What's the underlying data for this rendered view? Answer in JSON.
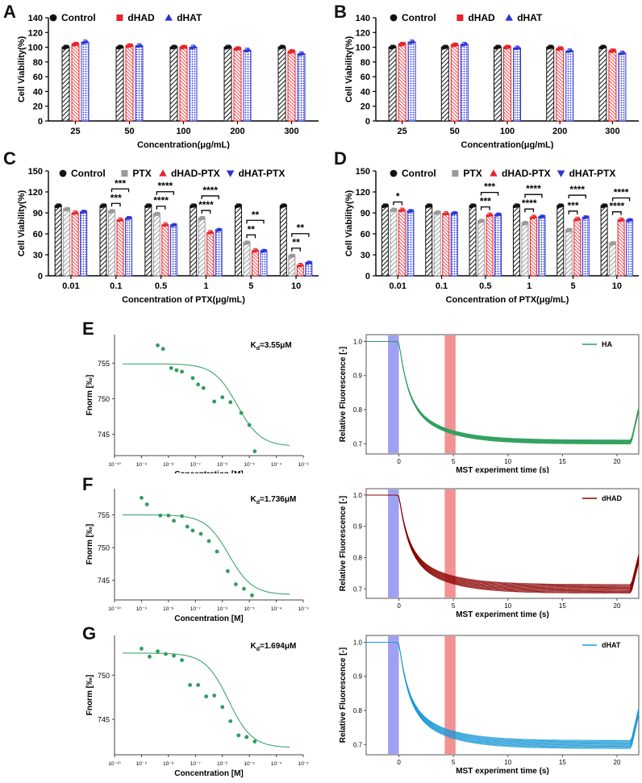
{
  "panels": {
    "A": "A",
    "B": "B",
    "C": "C",
    "D": "D",
    "E": "E",
    "F": "F",
    "G": "G"
  },
  "colors": {
    "control": "#111111",
    "dHAD": "#e8232a",
    "dHAT": "#2833d8",
    "PTX": "#9a9a9a",
    "green": "#2e9e5b",
    "darkred": "#8b0000",
    "cyan": "#1e9ad6"
  },
  "chart_data": [
    {
      "id": "A",
      "type": "bar",
      "ylabel": "Cell Viability(%)",
      "xlabel": "Concentration(μg/mL)",
      "ylim": [
        0,
        140
      ],
      "yticks": [
        0,
        20,
        40,
        60,
        80,
        100,
        120,
        140
      ],
      "categories": [
        "25",
        "50",
        "100",
        "200",
        "300"
      ],
      "series": [
        {
          "name": "Control",
          "values": [
            100,
            100,
            100,
            100,
            100
          ]
        },
        {
          "name": "dHAD",
          "values": [
            104,
            102,
            100,
            98,
            94
          ]
        },
        {
          "name": "dHAT",
          "values": [
            107,
            102,
            100,
            96,
            91
          ]
        }
      ],
      "significance": []
    },
    {
      "id": "B",
      "type": "bar",
      "ylabel": "Cell Viability(%)",
      "xlabel": "Concentration(μg/mL)",
      "ylim": [
        0,
        140
      ],
      "yticks": [
        0,
        20,
        40,
        60,
        80,
        100,
        120,
        140
      ],
      "categories": [
        "25",
        "50",
        "100",
        "200",
        "300"
      ],
      "series": [
        {
          "name": "Control",
          "values": [
            100,
            100,
            100,
            100,
            100
          ]
        },
        {
          "name": "dHAD",
          "values": [
            104,
            103,
            100,
            98,
            95
          ]
        },
        {
          "name": "dHAT",
          "values": [
            107,
            104,
            99,
            95,
            92
          ]
        }
      ],
      "significance": []
    },
    {
      "id": "C",
      "type": "bar",
      "ylabel": "Cell Viability(%)",
      "xlabel": "Concentration of PTX(μg/mL)",
      "ylim": [
        0,
        150
      ],
      "yticks": [
        0,
        30,
        60,
        90,
        120,
        150
      ],
      "categories": [
        "0.01",
        "0.1",
        "0.5",
        "1",
        "5",
        "10"
      ],
      "series": [
        {
          "name": "Control",
          "values": [
            100,
            100,
            100,
            100,
            100,
            100
          ]
        },
        {
          "name": "PTX",
          "values": [
            95,
            92,
            88,
            82,
            47,
            28
          ]
        },
        {
          "name": "dHAD-PTX",
          "values": [
            90,
            80,
            73,
            62,
            36,
            15
          ]
        },
        {
          "name": "dHAT-PTX",
          "values": [
            91,
            82,
            72,
            65,
            35,
            18
          ]
        }
      ],
      "significance": [
        {
          "cat": 1,
          "from": 1,
          "to": 2,
          "level": 0,
          "label": "***"
        },
        {
          "cat": 1,
          "from": 1,
          "to": 3,
          "level": 1,
          "label": "***"
        },
        {
          "cat": 2,
          "from": 1,
          "to": 2,
          "level": 0,
          "label": "****"
        },
        {
          "cat": 2,
          "from": 1,
          "to": 3,
          "level": 1,
          "label": "****"
        },
        {
          "cat": 3,
          "from": 1,
          "to": 2,
          "level": 0,
          "label": "****"
        },
        {
          "cat": 3,
          "from": 1,
          "to": 3,
          "level": 1,
          "label": "****"
        },
        {
          "cat": 4,
          "from": 1,
          "to": 2,
          "level": 0,
          "label": "**"
        },
        {
          "cat": 4,
          "from": 1,
          "to": 3,
          "level": 1,
          "label": "**"
        },
        {
          "cat": 5,
          "from": 1,
          "to": 2,
          "level": 0,
          "label": "**"
        },
        {
          "cat": 5,
          "from": 1,
          "to": 3,
          "level": 1,
          "label": "**"
        }
      ]
    },
    {
      "id": "D",
      "type": "bar",
      "ylabel": "Cell Viability(%)",
      "xlabel": "Concentration of PTX(μg/mL)",
      "ylim": [
        0,
        150
      ],
      "yticks": [
        0,
        30,
        60,
        90,
        120,
        150
      ],
      "categories": [
        "0.01",
        "0.1",
        "0.5",
        "1",
        "5",
        "10"
      ],
      "series": [
        {
          "name": "Control",
          "values": [
            100,
            100,
            100,
            100,
            100,
            100
          ]
        },
        {
          "name": "PTX",
          "values": [
            94,
            90,
            78,
            75,
            65,
            46
          ]
        },
        {
          "name": "dHAD-PTX",
          "values": [
            94,
            89,
            87,
            84,
            81,
            80
          ]
        },
        {
          "name": "dHAT-PTX",
          "values": [
            92,
            89,
            87,
            84,
            83,
            79
          ]
        }
      ],
      "significance": [
        {
          "cat": 0,
          "from": 1,
          "to": 2,
          "level": 0,
          "label": "*"
        },
        {
          "cat": 2,
          "from": 1,
          "to": 2,
          "level": 0,
          "label": "***"
        },
        {
          "cat": 2,
          "from": 1,
          "to": 3,
          "level": 1,
          "label": "***"
        },
        {
          "cat": 3,
          "from": 1,
          "to": 2,
          "level": 0,
          "label": "****"
        },
        {
          "cat": 3,
          "from": 1,
          "to": 3,
          "level": 1,
          "label": "****"
        },
        {
          "cat": 4,
          "from": 1,
          "to": 2,
          "level": 0,
          "label": "***"
        },
        {
          "cat": 4,
          "from": 1,
          "to": 3,
          "level": 1,
          "label": "****"
        },
        {
          "cat": 5,
          "from": 1,
          "to": 2,
          "level": 0,
          "label": "****"
        },
        {
          "cat": 5,
          "from": 1,
          "to": 3,
          "level": 1,
          "label": "****"
        }
      ]
    },
    {
      "id": "E-fit",
      "type": "scatter",
      "ylabel": "Fnorm [‰]",
      "xlabel": "Concentration [M]",
      "annotation_main": "K",
      "annotation_sub": "d",
      "annotation_rest": "=3.55μM",
      "xlog": [
        -10,
        -3
      ],
      "ylim": [
        742,
        759
      ],
      "yticks": [
        745,
        750,
        755
      ],
      "xtick_labels": [
        "10⁻¹⁰",
        "10⁻⁹",
        "10⁻⁸",
        "10⁻⁷",
        "10⁻⁶",
        "10⁻⁵",
        "10⁻⁴",
        "10⁻³"
      ],
      "points_log10x": [
        -8.4,
        -8.2,
        -7.9,
        -7.7,
        -7.5,
        -7.1,
        -6.9,
        -6.7,
        -6.3,
        -6.0,
        -5.7,
        -5.3,
        -5.0,
        -4.8
      ],
      "points_y": [
        757.5,
        757.0,
        754.3,
        754.0,
        753.8,
        752.9,
        752.0,
        751.5,
        749.6,
        750.2,
        749.5,
        748.0,
        746.3,
        742.6
      ],
      "fit": {
        "top": 754.9,
        "bottom": 743.3,
        "log_kd": -5.45,
        "slope": 1
      }
    },
    {
      "id": "E-trace",
      "type": "line",
      "ylabel": "Relative Fluorescence [-]",
      "xlabel": "MST experiment time (s)",
      "legend": "HA",
      "xlim": [
        -3,
        22
      ],
      "ylim": [
        0.67,
        1.02
      ],
      "xticks": [
        0,
        5,
        10,
        15,
        20
      ],
      "yticks": [
        0.7,
        0.8,
        0.9,
        1.0
      ],
      "ytick_labels": [
        "0.7",
        "0.8",
        "0.9",
        "1.0"
      ],
      "plateau": 0.705,
      "spread": 0.006,
      "n_traces": 14
    },
    {
      "id": "F-fit",
      "type": "scatter",
      "ylabel": "Fnorm [‰]",
      "xlabel": "Concentration [M]",
      "annotation_main": "K",
      "annotation_sub": "d",
      "annotation_rest": "=1.736μM",
      "xlog": [
        -10,
        -3
      ],
      "ylim": [
        742,
        759
      ],
      "yticks": [
        745,
        750,
        755
      ],
      "xtick_labels": [
        "10⁻¹⁰",
        "10⁻⁹",
        "10⁻⁸",
        "10⁻⁷",
        "10⁻⁶",
        "10⁻⁵",
        "10⁻⁴",
        "10⁻³"
      ],
      "points_log10x": [
        -9.0,
        -8.8,
        -8.3,
        -8.0,
        -7.8,
        -7.5,
        -7.3,
        -7.1,
        -6.8,
        -6.5,
        -6.2,
        -5.8,
        -5.5,
        -5.2,
        -4.9
      ],
      "points_y": [
        757.6,
        756.6,
        754.9,
        754.9,
        754.1,
        754.8,
        753.2,
        752.6,
        752.1,
        751.0,
        749.4,
        746.4,
        744.4,
        743.7,
        742.7
      ],
      "fit": {
        "top": 755.0,
        "bottom": 742.8,
        "log_kd": -5.76,
        "slope": 1
      }
    },
    {
      "id": "F-trace",
      "type": "line",
      "ylabel": "Relative Fluorescence [-]",
      "xlabel": "MST experiment time (s)",
      "legend": "dHAD",
      "xlim": [
        -3,
        22
      ],
      "ylim": [
        0.67,
        1.02
      ],
      "xticks": [
        0,
        5,
        10,
        15,
        20
      ],
      "yticks": [
        0.7,
        0.8,
        0.9,
        1.0
      ],
      "ytick_labels": [
        "0.7",
        "0.8",
        "0.9",
        "1.0"
      ],
      "plateau": 0.7,
      "spread": 0.014,
      "n_traces": 14
    },
    {
      "id": "G-fit",
      "type": "scatter",
      "ylabel": "Fnorm [‰]",
      "xlabel": "Concentration [M]",
      "annotation_main": "K",
      "annotation_sub": "d",
      "annotation_rest": "=1.694μM",
      "xlog": [
        -10,
        -3
      ],
      "ylim": [
        741,
        754.5
      ],
      "yticks": [
        745,
        750
      ],
      "xtick_labels": [
        "10⁻¹⁰",
        "10⁻⁹",
        "10⁻⁸",
        "10⁻⁷",
        "10⁻⁶",
        "10⁻⁵",
        "10⁻⁴",
        "10⁻³"
      ],
      "points_log10x": [
        -9.0,
        -8.7,
        -8.4,
        -8.1,
        -7.8,
        -7.5,
        -7.2,
        -6.9,
        -6.6,
        -6.3,
        -6.0,
        -5.7,
        -5.4,
        -5.1,
        -4.8
      ],
      "points_y": [
        753.0,
        752.1,
        752.7,
        752.4,
        752.2,
        751.7,
        748.9,
        748.9,
        747.6,
        747.7,
        746.4,
        744.8,
        743.2,
        743.0,
        742.5
      ],
      "fit": {
        "top": 752.5,
        "bottom": 741.8,
        "log_kd": -5.77,
        "slope": 1
      }
    },
    {
      "id": "G-trace",
      "type": "line",
      "ylabel": "Relative Fluorescence [-]",
      "xlabel": "MST experiment time (s)",
      "legend": "dHAT",
      "xlim": [
        -3,
        22
      ],
      "ylim": [
        0.67,
        1.02
      ],
      "xticks": [
        0,
        5,
        10,
        15,
        20
      ],
      "yticks": [
        0.7,
        0.8,
        0.9,
        1.0
      ],
      "ytick_labels": [
        "0.7",
        "0.8",
        "0.9",
        "1.0"
      ],
      "plateau": 0.7,
      "spread": 0.012,
      "n_traces": 14
    }
  ]
}
